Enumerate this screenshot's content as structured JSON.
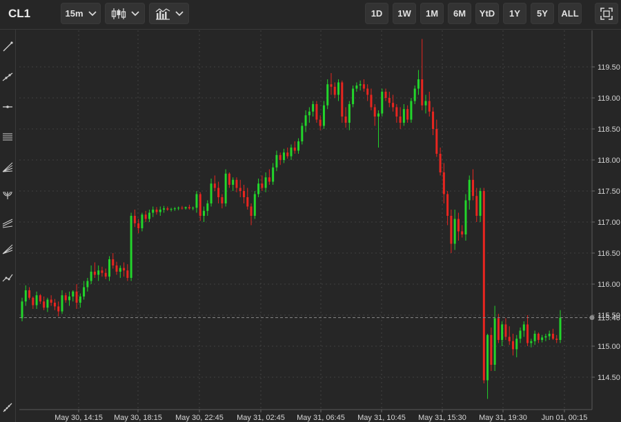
{
  "toolbar": {
    "symbol": "CL1",
    "interval": "15m",
    "ranges": [
      "1D",
      "1W",
      "1M",
      "6M",
      "YtD",
      "1Y",
      "5Y",
      "ALL"
    ]
  },
  "sidebar": {
    "tools": [
      "trend-line-icon",
      "ray-line-icon",
      "horizontal-line-icon",
      "fibonacci-icon",
      "fan-icon",
      "arc-icon",
      "channel-icon",
      "pitchfork-icon",
      "path-icon",
      "measure-icon"
    ]
  },
  "colors": {
    "up": "#22d62b",
    "down": "#e8251f",
    "background": "#262626",
    "grid": "#4a4a4a",
    "axis_text": "#d6d6d6"
  },
  "chart_data": {
    "type": "candlestick",
    "y_ticks": [
      114.5,
      115.0,
      115.5,
      116.0,
      116.5,
      117.0,
      117.5,
      118.0,
      118.5,
      119.0,
      119.5
    ],
    "y_tick_labels": [
      "114.50",
      "115.00",
      "115.50",
      "116.00",
      "116.50",
      "117.00",
      "117.50",
      "118.00",
      "118.50",
      "119.00",
      "119.50"
    ],
    "x_ticks": [
      "May 30, 14:15",
      "May 30, 18:15",
      "May 30, 22:45",
      "May 31, 02:45",
      "May 31, 06:45",
      "May 31, 10:45",
      "May 31, 15:30",
      "May 31, 19:30",
      "Jun 01, 00:15"
    ],
    "last_price": 115.46,
    "last_price_label": "115.46",
    "ylim": [
      114.2,
      120.0
    ],
    "grid": true,
    "candles": [
      [
        115.45,
        115.78,
        115.4,
        115.72
      ],
      [
        115.72,
        115.98,
        115.65,
        115.9
      ],
      [
        115.9,
        115.95,
        115.75,
        115.78
      ],
      [
        115.78,
        115.8,
        115.6,
        115.66
      ],
      [
        115.66,
        115.88,
        115.6,
        115.82
      ],
      [
        115.82,
        115.84,
        115.68,
        115.72
      ],
      [
        115.72,
        115.8,
        115.58,
        115.62
      ],
      [
        115.62,
        115.78,
        115.55,
        115.75
      ],
      [
        115.75,
        115.82,
        115.65,
        115.7
      ],
      [
        115.7,
        115.76,
        115.58,
        115.64
      ],
      [
        115.64,
        115.72,
        115.48,
        115.56
      ],
      [
        115.56,
        115.9,
        115.52,
        115.82
      ],
      [
        115.82,
        115.86,
        115.7,
        115.74
      ],
      [
        115.74,
        115.88,
        115.65,
        115.8
      ],
      [
        115.8,
        115.9,
        115.72,
        115.88
      ],
      [
        115.88,
        116.0,
        115.6,
        115.7
      ],
      [
        115.7,
        115.85,
        115.62,
        115.8
      ],
      [
        115.8,
        116.05,
        115.75,
        115.95
      ],
      [
        115.95,
        116.1,
        115.88,
        116.05
      ],
      [
        116.05,
        116.3,
        116.0,
        116.2
      ],
      [
        116.2,
        116.35,
        116.1,
        116.15
      ],
      [
        116.15,
        116.3,
        116.05,
        116.22
      ],
      [
        116.22,
        116.28,
        116.12,
        116.18
      ],
      [
        116.18,
        116.25,
        116.08,
        116.12
      ],
      [
        116.12,
        116.45,
        116.05,
        116.4
      ],
      [
        116.4,
        116.5,
        116.25,
        116.3
      ],
      [
        116.3,
        116.36,
        116.15,
        116.2
      ],
      [
        116.2,
        116.3,
        116.1,
        116.26
      ],
      [
        116.26,
        116.35,
        116.12,
        116.22
      ],
      [
        116.22,
        116.32,
        116.05,
        116.1
      ],
      [
        116.1,
        117.15,
        116.05,
        117.1
      ],
      [
        117.1,
        117.2,
        116.92,
        116.98
      ],
      [
        116.98,
        117.05,
        116.82,
        116.9
      ],
      [
        116.9,
        117.15,
        116.85,
        117.12
      ],
      [
        117.12,
        117.18,
        117.0,
        117.05
      ],
      [
        117.05,
        117.2,
        117.0,
        117.15
      ],
      [
        117.15,
        117.25,
        117.08,
        117.2
      ],
      [
        117.2,
        117.24,
        117.12,
        117.16
      ],
      [
        117.16,
        117.25,
        117.1,
        117.2
      ],
      [
        117.2,
        117.26,
        117.15,
        117.22
      ],
      [
        117.22,
        117.25,
        117.18,
        117.2
      ],
      [
        117.2,
        117.23,
        117.17,
        117.21
      ],
      [
        117.21,
        117.24,
        117.18,
        117.22
      ],
      [
        117.22,
        117.25,
        117.19,
        117.23
      ],
      [
        117.23,
        117.26,
        117.2,
        117.22
      ],
      [
        117.22,
        117.25,
        117.2,
        117.24
      ],
      [
        117.24,
        117.28,
        117.2,
        117.22
      ],
      [
        117.22,
        117.25,
        117.19,
        117.23
      ],
      [
        117.23,
        117.5,
        117.15,
        117.45
      ],
      [
        117.45,
        117.48,
        117.02,
        117.1
      ],
      [
        117.1,
        117.25,
        117.0,
        117.18
      ],
      [
        117.18,
        117.35,
        117.1,
        117.3
      ],
      [
        117.3,
        117.7,
        117.25,
        117.62
      ],
      [
        117.62,
        117.75,
        117.5,
        117.55
      ],
      [
        117.55,
        117.65,
        117.3,
        117.4
      ],
      [
        117.4,
        117.45,
        117.22,
        117.3
      ],
      [
        117.3,
        117.85,
        117.25,
        117.78
      ],
      [
        117.78,
        117.8,
        117.55,
        117.6
      ],
      [
        117.6,
        117.72,
        117.5,
        117.68
      ],
      [
        117.68,
        117.72,
        117.48,
        117.55
      ],
      [
        117.55,
        117.68,
        117.4,
        117.5
      ],
      [
        117.5,
        117.6,
        117.3,
        117.4
      ],
      [
        117.4,
        117.55,
        117.2,
        117.25
      ],
      [
        117.25,
        117.3,
        116.95,
        117.1
      ],
      [
        117.1,
        117.5,
        117.05,
        117.45
      ],
      [
        117.45,
        117.7,
        117.4,
        117.62
      ],
      [
        117.62,
        117.75,
        117.5,
        117.55
      ],
      [
        117.55,
        117.8,
        117.48,
        117.72
      ],
      [
        117.72,
        117.85,
        117.6,
        117.65
      ],
      [
        117.65,
        117.95,
        117.6,
        117.88
      ],
      [
        117.88,
        118.15,
        117.82,
        118.08
      ],
      [
        118.08,
        118.12,
        117.92,
        118.0
      ],
      [
        118.0,
        118.18,
        117.95,
        118.12
      ],
      [
        118.12,
        118.2,
        118.02,
        118.06
      ],
      [
        118.06,
        118.25,
        118.0,
        118.2
      ],
      [
        118.2,
        118.3,
        118.1,
        118.15
      ],
      [
        118.15,
        118.35,
        118.1,
        118.3
      ],
      [
        118.3,
        118.6,
        118.25,
        118.55
      ],
      [
        118.55,
        118.8,
        118.45,
        118.72
      ],
      [
        118.72,
        118.85,
        118.6,
        118.78
      ],
      [
        118.78,
        118.95,
        118.7,
        118.9
      ],
      [
        118.9,
        118.95,
        118.6,
        118.65
      ],
      [
        118.65,
        118.72,
        118.48,
        118.55
      ],
      [
        118.55,
        118.95,
        118.5,
        118.88
      ],
      [
        118.88,
        119.3,
        118.82,
        119.22
      ],
      [
        119.22,
        119.4,
        119.05,
        119.18
      ],
      [
        119.18,
        119.25,
        119.0,
        119.05
      ],
      [
        119.05,
        119.3,
        118.95,
        119.25
      ],
      [
        119.25,
        119.28,
        118.6,
        118.7
      ],
      [
        118.7,
        118.85,
        118.52,
        118.6
      ],
      [
        118.6,
        118.95,
        118.48,
        118.9
      ],
      [
        118.9,
        119.2,
        118.85,
        119.15
      ],
      [
        119.15,
        119.25,
        119.1,
        119.2
      ],
      [
        119.2,
        119.28,
        119.12,
        119.22
      ],
      [
        119.22,
        119.3,
        119.1,
        119.15
      ],
      [
        119.15,
        119.22,
        118.95,
        119.05
      ],
      [
        119.05,
        119.15,
        118.8,
        118.85
      ],
      [
        118.85,
        118.9,
        118.55,
        118.7
      ],
      [
        118.7,
        118.8,
        118.2,
        118.75
      ],
      [
        118.75,
        119.15,
        118.7,
        119.1
      ],
      [
        119.1,
        119.15,
        118.95,
        119.0
      ],
      [
        119.0,
        119.1,
        118.85,
        118.92
      ],
      [
        118.92,
        119.05,
        118.78,
        118.85
      ],
      [
        118.85,
        118.9,
        118.6,
        118.7
      ],
      [
        118.7,
        118.85,
        118.5,
        118.6
      ],
      [
        118.6,
        118.9,
        118.55,
        118.82
      ],
      [
        118.82,
        118.88,
        118.6,
        118.65
      ],
      [
        118.65,
        119.0,
        118.6,
        118.95
      ],
      [
        118.95,
        119.2,
        118.9,
        119.15
      ],
      [
        119.15,
        119.45,
        119.05,
        119.3
      ],
      [
        119.3,
        119.95,
        118.8,
        118.88
      ],
      [
        118.88,
        119.05,
        118.75,
        118.95
      ],
      [
        118.95,
        119.1,
        118.7,
        118.78
      ],
      [
        118.78,
        118.85,
        118.4,
        118.5
      ],
      [
        118.5,
        118.65,
        118.05,
        118.1
      ],
      [
        118.1,
        118.2,
        117.75,
        117.8
      ],
      [
        117.8,
        117.95,
        117.3,
        117.45
      ],
      [
        117.45,
        117.5,
        116.95,
        117.1
      ],
      [
        117.1,
        117.2,
        116.5,
        116.65
      ],
      [
        116.65,
        117.2,
        116.55,
        117.05
      ],
      [
        117.05,
        117.15,
        116.7,
        116.85
      ],
      [
        116.85,
        116.95,
        116.75,
        116.8
      ],
      [
        116.8,
        117.45,
        116.7,
        117.35
      ],
      [
        117.35,
        117.75,
        117.2,
        117.68
      ],
      [
        117.68,
        117.85,
        117.35,
        117.42
      ],
      [
        117.42,
        117.55,
        117.0,
        117.1
      ],
      [
        117.1,
        117.55,
        117.0,
        117.5
      ],
      [
        117.5,
        117.55,
        114.4,
        114.45
      ],
      [
        114.45,
        115.2,
        114.15,
        115.18
      ],
      [
        115.18,
        115.3,
        114.6,
        114.7
      ],
      [
        114.7,
        115.65,
        114.6,
        115.45
      ],
      [
        115.45,
        115.52,
        115.05,
        115.1
      ],
      [
        115.1,
        115.4,
        115.0,
        115.35
      ],
      [
        115.35,
        115.45,
        115.1,
        115.15
      ],
      [
        115.15,
        115.32,
        115.02,
        115.08
      ],
      [
        115.08,
        115.2,
        114.85,
        114.95
      ],
      [
        114.95,
        115.18,
        114.82,
        115.12
      ],
      [
        115.12,
        115.3,
        115.05,
        115.25
      ],
      [
        115.25,
        115.4,
        115.15,
        115.35
      ],
      [
        115.35,
        115.5,
        115.0,
        115.05
      ],
      [
        115.05,
        115.12,
        114.98,
        115.08
      ],
      [
        115.08,
        115.25,
        115.02,
        115.2
      ],
      [
        115.2,
        115.22,
        115.05,
        115.1
      ],
      [
        115.1,
        115.18,
        115.06,
        115.14
      ],
      [
        115.14,
        115.2,
        115.08,
        115.16
      ],
      [
        115.16,
        115.25,
        115.1,
        115.2
      ],
      [
        115.2,
        115.28,
        115.1,
        115.12
      ],
      [
        115.12,
        115.18,
        115.05,
        115.1
      ],
      [
        115.1,
        115.58,
        115.05,
        115.46
      ]
    ]
  }
}
